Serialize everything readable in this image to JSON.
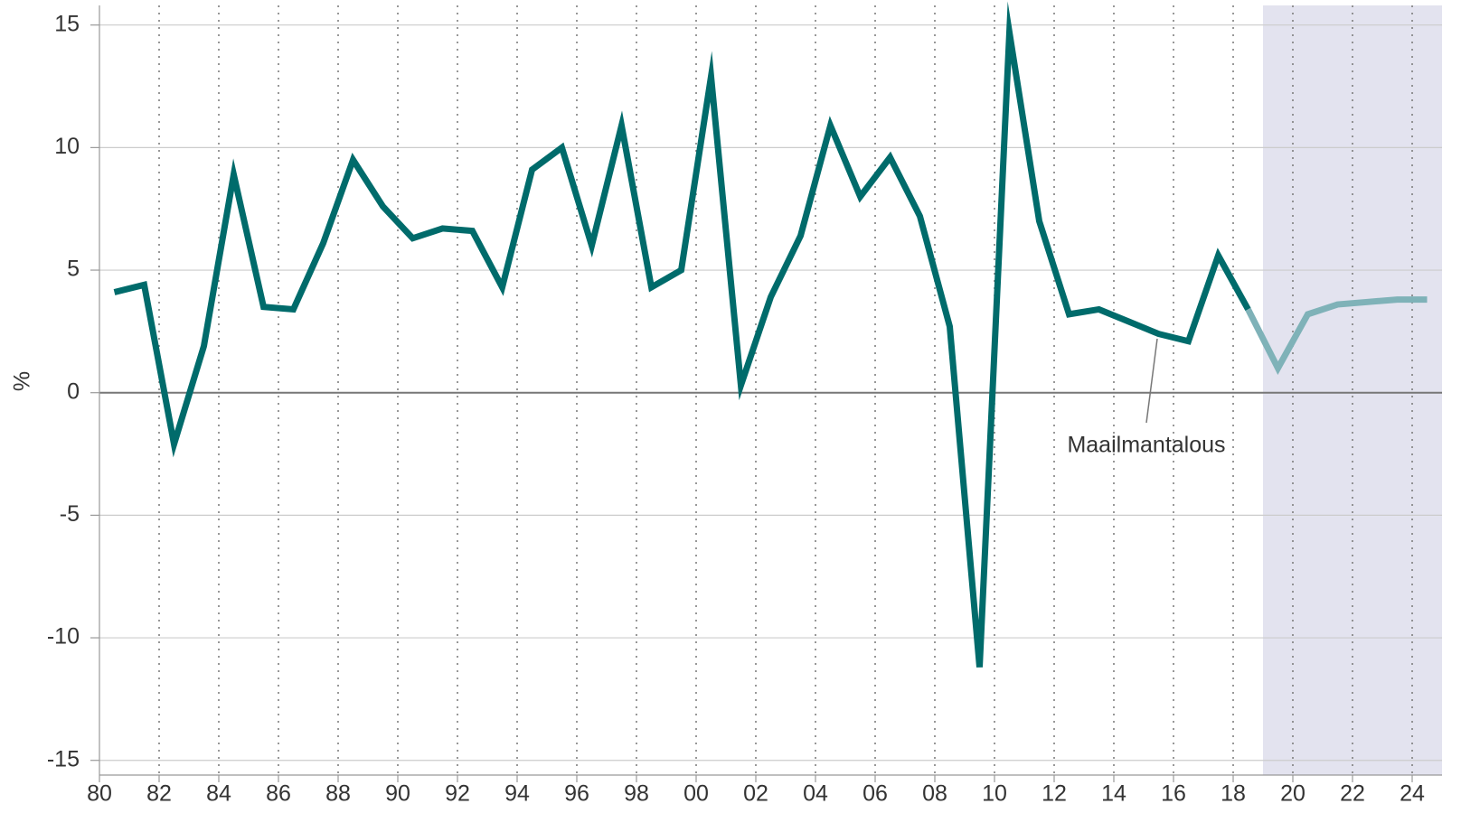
{
  "chart_data": {
    "type": "line",
    "y_label": "%",
    "annotation": "Maailmantalous",
    "x": [
      1980.5,
      1981.5,
      1982.5,
      1983.5,
      1984.5,
      1985.5,
      1986.5,
      1987.5,
      1988.5,
      1989.5,
      1990.5,
      1991.5,
      1992.5,
      1993.5,
      1994.5,
      1995.5,
      1996.5,
      1997.5,
      1998.5,
      1999.5,
      2000.5,
      2001.5,
      2002.5,
      2003.5,
      2004.5,
      2005.5,
      2006.5,
      2007.5,
      2008.5,
      2009.5,
      2010.5,
      2011.5,
      2012.5,
      2013.5,
      2014.5,
      2015.5,
      2016.5,
      2017.5,
      2018.5,
      2019.5,
      2020.5,
      2021.5,
      2022.5,
      2023.5,
      2024.5
    ],
    "series": [
      {
        "color": "#006b6b",
        "values": [
          4.1,
          4.4,
          -2.1,
          1.9,
          8.9,
          3.5,
          3.4,
          6.1,
          9.5,
          7.6,
          6.3,
          6.7,
          6.6,
          4.3,
          9.1,
          10.0,
          6.0,
          10.9,
          4.3,
          5.0,
          12.9,
          0.3,
          3.9,
          6.4,
          10.9,
          8.0,
          9.6,
          7.2,
          2.7,
          -11.2,
          14.7,
          7.0,
          3.2,
          3.4,
          2.9,
          2.4,
          2.1,
          5.6,
          3.4,
          null,
          null,
          null,
          null,
          null,
          null
        ]
      },
      {
        "color": "#7fb2b8",
        "values": [
          null,
          null,
          null,
          null,
          null,
          null,
          null,
          null,
          null,
          null,
          null,
          null,
          null,
          null,
          null,
          null,
          null,
          null,
          null,
          null,
          null,
          null,
          null,
          null,
          null,
          null,
          null,
          null,
          null,
          null,
          null,
          null,
          null,
          null,
          null,
          null,
          null,
          null,
          3.4,
          1.0,
          3.2,
          3.6,
          3.7,
          3.8,
          3.8
        ]
      }
    ],
    "shaded_x": [
      2019,
      2025
    ],
    "shade_color": "#e3e3ef",
    "xlim": [
      1980,
      2025
    ],
    "xticks": [
      {
        "value": 1980,
        "label": "80"
      },
      {
        "value": 1982,
        "label": "82"
      },
      {
        "value": 1984,
        "label": "84"
      },
      {
        "value": 1986,
        "label": "86"
      },
      {
        "value": 1988,
        "label": "88"
      },
      {
        "value": 1990,
        "label": "90"
      },
      {
        "value": 1992,
        "label": "92"
      },
      {
        "value": 1994,
        "label": "94"
      },
      {
        "value": 1996,
        "label": "96"
      },
      {
        "value": 1998,
        "label": "98"
      },
      {
        "value": 2000,
        "label": "00"
      },
      {
        "value": 2002,
        "label": "02"
      },
      {
        "value": 2004,
        "label": "04"
      },
      {
        "value": 2006,
        "label": "06"
      },
      {
        "value": 2008,
        "label": "08"
      },
      {
        "value": 2010,
        "label": "10"
      },
      {
        "value": 2012,
        "label": "12"
      },
      {
        "value": 2014,
        "label": "14"
      },
      {
        "value": 2016,
        "label": "16"
      },
      {
        "value": 2018,
        "label": "18"
      },
      {
        "value": 2020,
        "label": "20"
      },
      {
        "value": 2022,
        "label": "22"
      },
      {
        "value": 2024,
        "label": "24"
      }
    ],
    "ylim": [
      -15.6,
      15.8
    ],
    "yticks": [
      15,
      10,
      5,
      0,
      -5,
      -10,
      -15
    ],
    "grid": true
  }
}
